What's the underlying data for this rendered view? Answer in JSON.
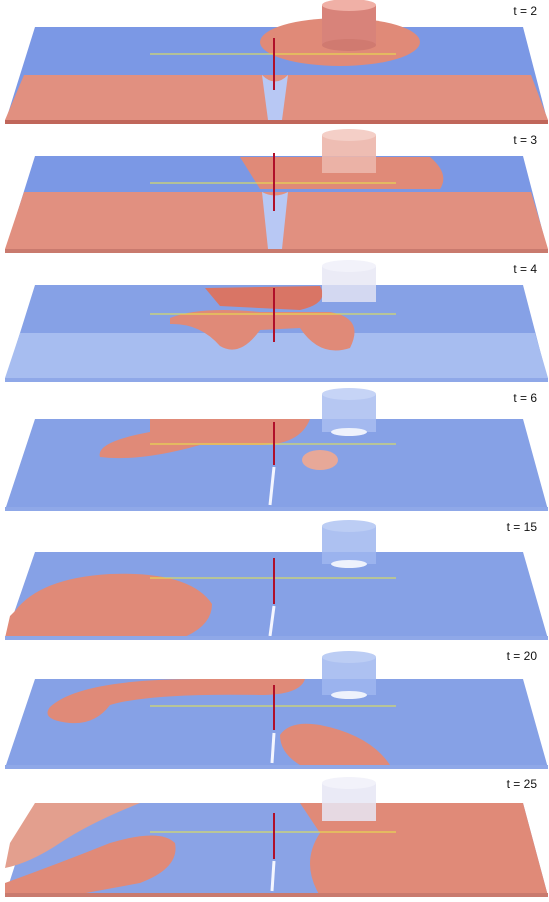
{
  "frames": [
    {
      "label": "t = 2"
    },
    {
      "label": "t = 3"
    },
    {
      "label": "t = 4"
    },
    {
      "label": "t = 6"
    },
    {
      "label": "t = 15"
    },
    {
      "label": "t = 20"
    },
    {
      "label": "t = 25"
    }
  ],
  "colors": {
    "cold": "#7a98e6",
    "cold_light": "#a9bff0",
    "warm": "#e08a78",
    "warm_dark": "#c7584a",
    "probe_line": "#e8e84a",
    "needle": "#b0102a",
    "cylinder": "#f0d0c8"
  }
}
